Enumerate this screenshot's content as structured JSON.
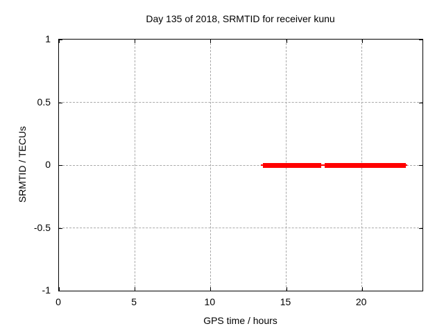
{
  "chart_data": {
    "type": "line",
    "title": "Day 135 of 2018, SRMTID for receiver kunu",
    "xlabel": "GPS time / hours",
    "ylabel": "SRMTID / TECUs",
    "xlim": [
      0,
      24
    ],
    "ylim": [
      -1,
      1
    ],
    "xticks": [
      {
        "value": 0,
        "label": "0"
      },
      {
        "value": 5,
        "label": "5"
      },
      {
        "value": 10,
        "label": "10"
      },
      {
        "value": 15,
        "label": "15"
      },
      {
        "value": 20,
        "label": "20"
      }
    ],
    "yticks": [
      {
        "value": 1,
        "label": "1"
      },
      {
        "value": 0.5,
        "label": "0.5"
      },
      {
        "value": 0,
        "label": "0"
      },
      {
        "value": -0.5,
        "label": "-0.5"
      },
      {
        "value": -1,
        "label": "-1"
      }
    ],
    "grid": true,
    "legend": "none",
    "colors": {
      "series": "#ff0000",
      "grid": "#a8a8a8",
      "axis": "#000000",
      "background": "#ffffff"
    },
    "series": [
      {
        "name": "SRMTID",
        "color": "#ff0000",
        "y_value": 0,
        "connecting_line": {
          "x_start": 13.35,
          "x_end": 23.0,
          "thickness_px": 2
        },
        "thick_segments": [
          {
            "x_start": 13.45,
            "x_end": 17.3,
            "y": 0
          },
          {
            "x_start": 17.55,
            "x_end": 22.9,
            "y": 0
          }
        ],
        "thick_thickness_px": 7
      }
    ]
  }
}
